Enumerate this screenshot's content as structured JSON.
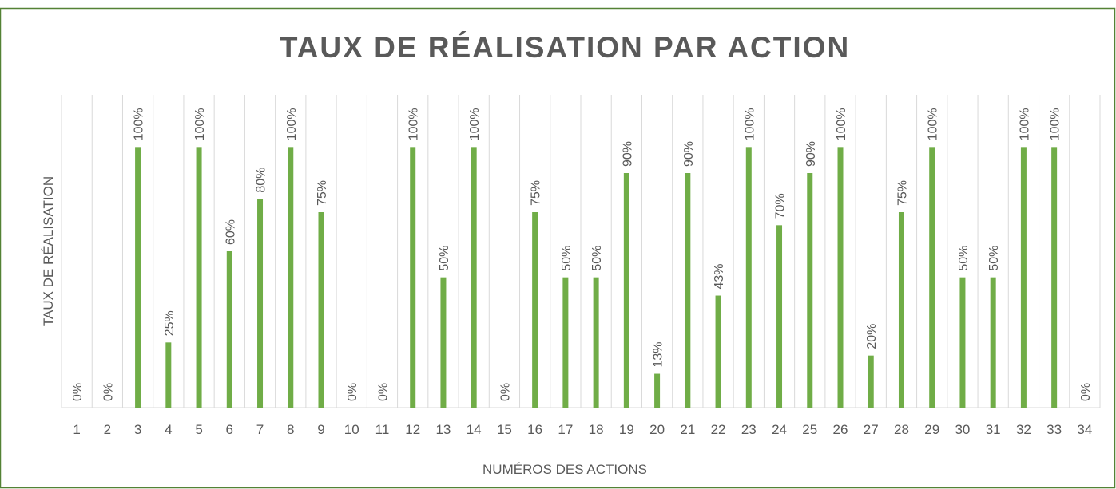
{
  "chart_data": {
    "type": "bar",
    "title": "TAUX DE RÉALISATION PAR ACTION",
    "xlabel": "NUMÉROS DES ACTIONS",
    "ylabel": "TAUX DE RÉALISATION",
    "categories": [
      "1",
      "2",
      "3",
      "4",
      "5",
      "6",
      "7",
      "8",
      "9",
      "10",
      "11",
      "12",
      "13",
      "14",
      "15",
      "16",
      "17",
      "18",
      "19",
      "20",
      "21",
      "22",
      "23",
      "24",
      "25",
      "26",
      "27",
      "28",
      "29",
      "30",
      "31",
      "32",
      "33",
      "34"
    ],
    "values": [
      0,
      0,
      100,
      25,
      100,
      60,
      80,
      100,
      75,
      0,
      0,
      100,
      50,
      100,
      0,
      75,
      50,
      50,
      90,
      13,
      90,
      43,
      100,
      70,
      90,
      100,
      20,
      75,
      100,
      50,
      50,
      100,
      100,
      0
    ],
    "value_labels": [
      "0%",
      "0%",
      "100%",
      "25%",
      "100%",
      "60%",
      "80%",
      "100%",
      "75%",
      "0%",
      "0%",
      "100%",
      "50%",
      "100%",
      "0%",
      "75%",
      "50%",
      "50%",
      "90%",
      "13%",
      "90%",
      "43%",
      "100%",
      "70%",
      "90%",
      "100%",
      "20%",
      "75%",
      "100%",
      "50%",
      "50%",
      "100%",
      "100%",
      "0%"
    ],
    "color": "#70ad47",
    "ylim": [
      0,
      120
    ],
    "grid": true
  }
}
